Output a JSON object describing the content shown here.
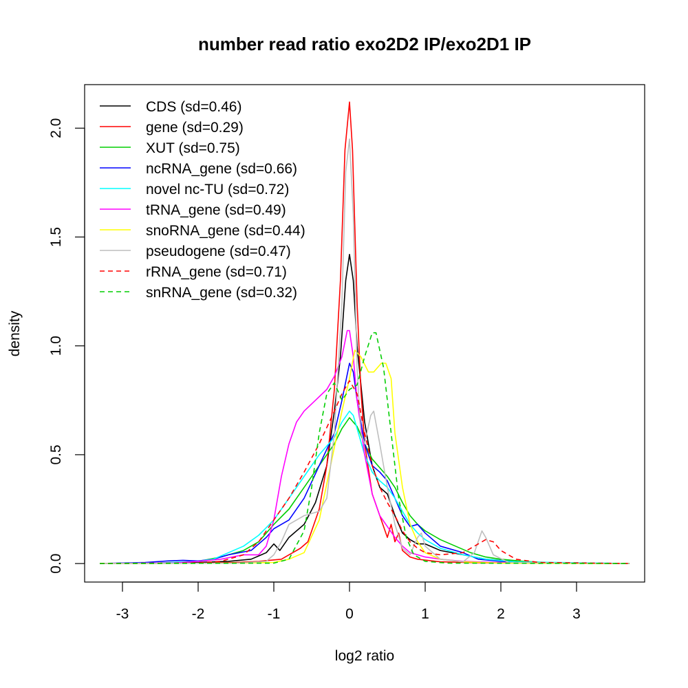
{
  "chart_data": {
    "type": "line",
    "title": "number read ratio exo2D2 IP/exo2D1 IP",
    "xlabel": "log2 ratio",
    "ylabel": "density",
    "xlim": [
      -3.5,
      3.9
    ],
    "ylim": [
      -0.085,
      2.2
    ],
    "xticks": [
      -3,
      -2,
      -1,
      0,
      1,
      2,
      3
    ],
    "xtick_labels": [
      "-3",
      "-2",
      "-1",
      "0",
      "1",
      "2",
      "3"
    ],
    "yticks": [
      0,
      0.5,
      1,
      1.5,
      2
    ],
    "ytick_labels": [
      "0.0",
      "0.5",
      "1.0",
      "1.5",
      "2.0"
    ],
    "legend_position": "top-left",
    "series": [
      {
        "name": "CDS (sd=0.46)",
        "color": "#000000",
        "dash": "solid",
        "points": [
          [
            -3.3,
            0
          ],
          [
            -2.5,
            0.002
          ],
          [
            -2.0,
            0.005
          ],
          [
            -1.6,
            0.01
          ],
          [
            -1.3,
            0.02
          ],
          [
            -1.1,
            0.05
          ],
          [
            -1.0,
            0.09
          ],
          [
            -0.92,
            0.06
          ],
          [
            -0.8,
            0.12
          ],
          [
            -0.6,
            0.18
          ],
          [
            -0.45,
            0.28
          ],
          [
            -0.3,
            0.45
          ],
          [
            -0.2,
            0.7
          ],
          [
            -0.12,
            0.95
          ],
          [
            -0.05,
            1.3
          ],
          [
            0.0,
            1.42
          ],
          [
            0.05,
            1.3
          ],
          [
            0.1,
            1.0
          ],
          [
            0.2,
            0.65
          ],
          [
            0.3,
            0.45
          ],
          [
            0.4,
            0.35
          ],
          [
            0.5,
            0.32
          ],
          [
            0.6,
            0.22
          ],
          [
            0.7,
            0.14
          ],
          [
            0.8,
            0.11
          ],
          [
            0.9,
            0.09
          ],
          [
            1.0,
            0.09
          ],
          [
            1.2,
            0.06
          ],
          [
            1.5,
            0.04
          ],
          [
            1.8,
            0.02
          ],
          [
            2.2,
            0.01
          ],
          [
            2.6,
            0.003
          ],
          [
            3.7,
            0
          ]
        ]
      },
      {
        "name": "gene (sd=0.29)",
        "color": "#ff0000",
        "dash": "solid",
        "points": [
          [
            -3.3,
            0
          ],
          [
            -2.0,
            0.002
          ],
          [
            -1.5,
            0.005
          ],
          [
            -1.2,
            0.01
          ],
          [
            -0.9,
            0.02
          ],
          [
            -0.8,
            0.04
          ],
          [
            -0.65,
            0.07
          ],
          [
            -0.55,
            0.1
          ],
          [
            -0.4,
            0.25
          ],
          [
            -0.3,
            0.45
          ],
          [
            -0.2,
            0.8
          ],
          [
            -0.12,
            1.3
          ],
          [
            -0.06,
            1.9
          ],
          [
            0.0,
            2.12
          ],
          [
            0.04,
            1.9
          ],
          [
            0.1,
            1.2
          ],
          [
            0.15,
            0.8
          ],
          [
            0.2,
            0.55
          ],
          [
            0.3,
            0.32
          ],
          [
            0.4,
            0.22
          ],
          [
            0.5,
            0.12
          ],
          [
            0.55,
            0.18
          ],
          [
            0.6,
            0.1
          ],
          [
            0.65,
            0.14
          ],
          [
            0.7,
            0.06
          ],
          [
            0.8,
            0.03
          ],
          [
            0.9,
            0.02
          ],
          [
            1.2,
            0.008
          ],
          [
            1.8,
            0.003
          ],
          [
            3.7,
            0
          ]
        ]
      },
      {
        "name": "XUT (sd=0.75)",
        "color": "#00cd00",
        "dash": "solid",
        "points": [
          [
            -3.3,
            0
          ],
          [
            -2.5,
            0.003
          ],
          [
            -2.0,
            0.01
          ],
          [
            -1.7,
            0.03
          ],
          [
            -1.4,
            0.06
          ],
          [
            -1.2,
            0.1
          ],
          [
            -1.0,
            0.18
          ],
          [
            -0.8,
            0.25
          ],
          [
            -0.6,
            0.35
          ],
          [
            -0.4,
            0.45
          ],
          [
            -0.2,
            0.55
          ],
          [
            -0.1,
            0.62
          ],
          [
            0.0,
            0.67
          ],
          [
            0.1,
            0.63
          ],
          [
            0.2,
            0.55
          ],
          [
            0.3,
            0.48
          ],
          [
            0.4,
            0.44
          ],
          [
            0.5,
            0.4
          ],
          [
            0.6,
            0.35
          ],
          [
            0.7,
            0.28
          ],
          [
            0.8,
            0.22
          ],
          [
            0.9,
            0.18
          ],
          [
            1.0,
            0.15
          ],
          [
            1.2,
            0.11
          ],
          [
            1.4,
            0.08
          ],
          [
            1.6,
            0.05
          ],
          [
            1.8,
            0.03
          ],
          [
            2.0,
            0.02
          ],
          [
            2.3,
            0.01
          ],
          [
            2.7,
            0.003
          ],
          [
            3.7,
            0
          ]
        ]
      },
      {
        "name": "ncRNA_gene (sd=0.66)",
        "color": "#0000ff",
        "dash": "solid",
        "points": [
          [
            -3.3,
            0
          ],
          [
            -2.7,
            0.005
          ],
          [
            -2.4,
            0.012
          ],
          [
            -2.2,
            0.015
          ],
          [
            -2.0,
            0.012
          ],
          [
            -1.8,
            0.02
          ],
          [
            -1.6,
            0.04
          ],
          [
            -1.3,
            0.06
          ],
          [
            -1.1,
            0.12
          ],
          [
            -1.0,
            0.16
          ],
          [
            -0.8,
            0.2
          ],
          [
            -0.6,
            0.3
          ],
          [
            -0.4,
            0.45
          ],
          [
            -0.2,
            0.6
          ],
          [
            -0.1,
            0.75
          ],
          [
            0.0,
            0.92
          ],
          [
            0.05,
            0.88
          ],
          [
            0.1,
            0.75
          ],
          [
            0.2,
            0.55
          ],
          [
            0.3,
            0.45
          ],
          [
            0.4,
            0.42
          ],
          [
            0.5,
            0.38
          ],
          [
            0.6,
            0.3
          ],
          [
            0.7,
            0.22
          ],
          [
            0.8,
            0.17
          ],
          [
            0.9,
            0.18
          ],
          [
            1.0,
            0.14
          ],
          [
            1.2,
            0.08
          ],
          [
            1.5,
            0.05
          ],
          [
            1.7,
            0.02
          ],
          [
            2.0,
            0.01
          ],
          [
            2.3,
            0.005
          ],
          [
            3.7,
            0
          ]
        ]
      },
      {
        "name": "novel nc-TU (sd=0.72)",
        "color": "#00ffff",
        "dash": "solid",
        "points": [
          [
            -3.3,
            0
          ],
          [
            -2.5,
            0.003
          ],
          [
            -2.0,
            0.01
          ],
          [
            -1.8,
            0.02
          ],
          [
            -1.6,
            0.05
          ],
          [
            -1.4,
            0.08
          ],
          [
            -1.2,
            0.13
          ],
          [
            -1.0,
            0.2
          ],
          [
            -0.8,
            0.3
          ],
          [
            -0.6,
            0.4
          ],
          [
            -0.4,
            0.5
          ],
          [
            -0.2,
            0.58
          ],
          [
            -0.1,
            0.65
          ],
          [
            0.0,
            0.7
          ],
          [
            0.05,
            0.68
          ],
          [
            0.1,
            0.62
          ],
          [
            0.2,
            0.5
          ],
          [
            0.3,
            0.42
          ],
          [
            0.4,
            0.38
          ],
          [
            0.5,
            0.35
          ],
          [
            0.6,
            0.3
          ],
          [
            0.7,
            0.24
          ],
          [
            0.8,
            0.18
          ],
          [
            0.9,
            0.14
          ],
          [
            1.0,
            0.11
          ],
          [
            1.2,
            0.07
          ],
          [
            1.5,
            0.04
          ],
          [
            1.8,
            0.02
          ],
          [
            2.2,
            0.008
          ],
          [
            3.7,
            0
          ]
        ]
      },
      {
        "name": "tRNA_gene (sd=0.49)",
        "color": "#ff00ff",
        "dash": "solid",
        "points": [
          [
            -3.3,
            0
          ],
          [
            -2.3,
            0.003
          ],
          [
            -2.0,
            0.01
          ],
          [
            -1.7,
            0.02
          ],
          [
            -1.4,
            0.04
          ],
          [
            -1.2,
            0.04
          ],
          [
            -1.1,
            0.08
          ],
          [
            -1.0,
            0.2
          ],
          [
            -0.9,
            0.4
          ],
          [
            -0.8,
            0.55
          ],
          [
            -0.7,
            0.65
          ],
          [
            -0.6,
            0.7
          ],
          [
            -0.45,
            0.75
          ],
          [
            -0.3,
            0.8
          ],
          [
            -0.2,
            0.86
          ],
          [
            -0.1,
            0.95
          ],
          [
            -0.03,
            1.07
          ],
          [
            0.0,
            1.07
          ],
          [
            0.05,
            0.95
          ],
          [
            0.1,
            0.75
          ],
          [
            0.2,
            0.5
          ],
          [
            0.3,
            0.32
          ],
          [
            0.4,
            0.22
          ],
          [
            0.5,
            0.17
          ],
          [
            0.6,
            0.12
          ],
          [
            0.7,
            0.08
          ],
          [
            0.8,
            0.05
          ],
          [
            0.9,
            0.04
          ],
          [
            1.0,
            0.03
          ],
          [
            1.2,
            0.02
          ],
          [
            1.5,
            0.01
          ],
          [
            2.0,
            0.004
          ],
          [
            3.7,
            0
          ]
        ]
      },
      {
        "name": "snoRNA_gene (sd=0.44)",
        "color": "#ffff00",
        "dash": "solid",
        "points": [
          [
            -3.3,
            0
          ],
          [
            -1.5,
            0.002
          ],
          [
            -1.0,
            0.005
          ],
          [
            -0.8,
            0.02
          ],
          [
            -0.6,
            0.05
          ],
          [
            -0.4,
            0.2
          ],
          [
            -0.25,
            0.45
          ],
          [
            -0.1,
            0.7
          ],
          [
            0.0,
            0.85
          ],
          [
            0.07,
            0.98
          ],
          [
            0.15,
            0.95
          ],
          [
            0.25,
            0.88
          ],
          [
            0.32,
            0.88
          ],
          [
            0.42,
            0.92
          ],
          [
            0.48,
            0.92
          ],
          [
            0.55,
            0.85
          ],
          [
            0.6,
            0.6
          ],
          [
            0.7,
            0.35
          ],
          [
            0.8,
            0.18
          ],
          [
            0.9,
            0.1
          ],
          [
            1.0,
            0.05
          ],
          [
            1.2,
            0.02
          ],
          [
            1.5,
            0.008
          ],
          [
            2.0,
            0.002
          ],
          [
            3.7,
            0
          ]
        ]
      },
      {
        "name": "pseudogene (sd=0.47)",
        "color": "#bebebe",
        "dash": "solid",
        "points": [
          [
            -3.3,
            0
          ],
          [
            -1.5,
            0.002
          ],
          [
            -1.1,
            0.01
          ],
          [
            -1.0,
            0.04
          ],
          [
            -0.9,
            0.1
          ],
          [
            -0.8,
            0.18
          ],
          [
            -0.6,
            0.22
          ],
          [
            -0.4,
            0.24
          ],
          [
            -0.3,
            0.3
          ],
          [
            -0.2,
            0.6
          ],
          [
            -0.1,
            1.2
          ],
          [
            -0.05,
            1.8
          ],
          [
            0.0,
            1.95
          ],
          [
            0.05,
            1.6
          ],
          [
            0.1,
            0.9
          ],
          [
            0.15,
            0.6
          ],
          [
            0.2,
            0.55
          ],
          [
            0.28,
            0.68
          ],
          [
            0.32,
            0.7
          ],
          [
            0.4,
            0.55
          ],
          [
            0.5,
            0.35
          ],
          [
            0.6,
            0.18
          ],
          [
            0.7,
            0.07
          ],
          [
            0.8,
            0.04
          ],
          [
            0.9,
            0.12
          ],
          [
            0.95,
            0.14
          ],
          [
            1.0,
            0.08
          ],
          [
            1.2,
            0.02
          ],
          [
            1.5,
            0.008
          ],
          [
            1.65,
            0.05
          ],
          [
            1.75,
            0.15
          ],
          [
            1.8,
            0.12
          ],
          [
            1.9,
            0.04
          ],
          [
            2.1,
            0.005
          ],
          [
            3.7,
            0
          ]
        ]
      },
      {
        "name": "rRNA_gene (sd=0.71)",
        "color": "#ff0000",
        "dash": "dashed",
        "points": [
          [
            -3.3,
            0
          ],
          [
            -2.0,
            0.003
          ],
          [
            -1.7,
            0.01
          ],
          [
            -1.4,
            0.04
          ],
          [
            -1.2,
            0.1
          ],
          [
            -1.0,
            0.2
          ],
          [
            -0.8,
            0.3
          ],
          [
            -0.6,
            0.42
          ],
          [
            -0.4,
            0.55
          ],
          [
            -0.2,
            0.7
          ],
          [
            -0.1,
            0.78
          ],
          [
            0.0,
            0.84
          ],
          [
            0.1,
            0.78
          ],
          [
            0.2,
            0.6
          ],
          [
            0.3,
            0.45
          ],
          [
            0.4,
            0.35
          ],
          [
            0.5,
            0.28
          ],
          [
            0.6,
            0.22
          ],
          [
            0.7,
            0.15
          ],
          [
            0.8,
            0.1
          ],
          [
            0.9,
            0.07
          ],
          [
            1.0,
            0.05
          ],
          [
            1.2,
            0.04
          ],
          [
            1.5,
            0.05
          ],
          [
            1.65,
            0.08
          ],
          [
            1.8,
            0.11
          ],
          [
            1.9,
            0.1
          ],
          [
            2.0,
            0.06
          ],
          [
            2.2,
            0.02
          ],
          [
            2.5,
            0.005
          ],
          [
            3.7,
            0
          ]
        ]
      },
      {
        "name": "snRNA_gene (sd=0.32)",
        "color": "#00cd00",
        "dash": "dashed",
        "points": [
          [
            -3.3,
            0
          ],
          [
            -1.0,
            0.002
          ],
          [
            -0.8,
            0.02
          ],
          [
            -0.6,
            0.15
          ],
          [
            -0.5,
            0.35
          ],
          [
            -0.4,
            0.6
          ],
          [
            -0.3,
            0.78
          ],
          [
            -0.2,
            0.83
          ],
          [
            -0.1,
            0.75
          ],
          [
            0.0,
            0.8
          ],
          [
            0.1,
            0.82
          ],
          [
            0.2,
            0.95
          ],
          [
            0.3,
            1.06
          ],
          [
            0.35,
            1.06
          ],
          [
            0.45,
            0.9
          ],
          [
            0.55,
            0.6
          ],
          [
            0.65,
            0.3
          ],
          [
            0.75,
            0.12
          ],
          [
            0.85,
            0.04
          ],
          [
            1.0,
            0.01
          ],
          [
            1.3,
            0.002
          ],
          [
            3.7,
            0
          ]
        ]
      }
    ]
  }
}
